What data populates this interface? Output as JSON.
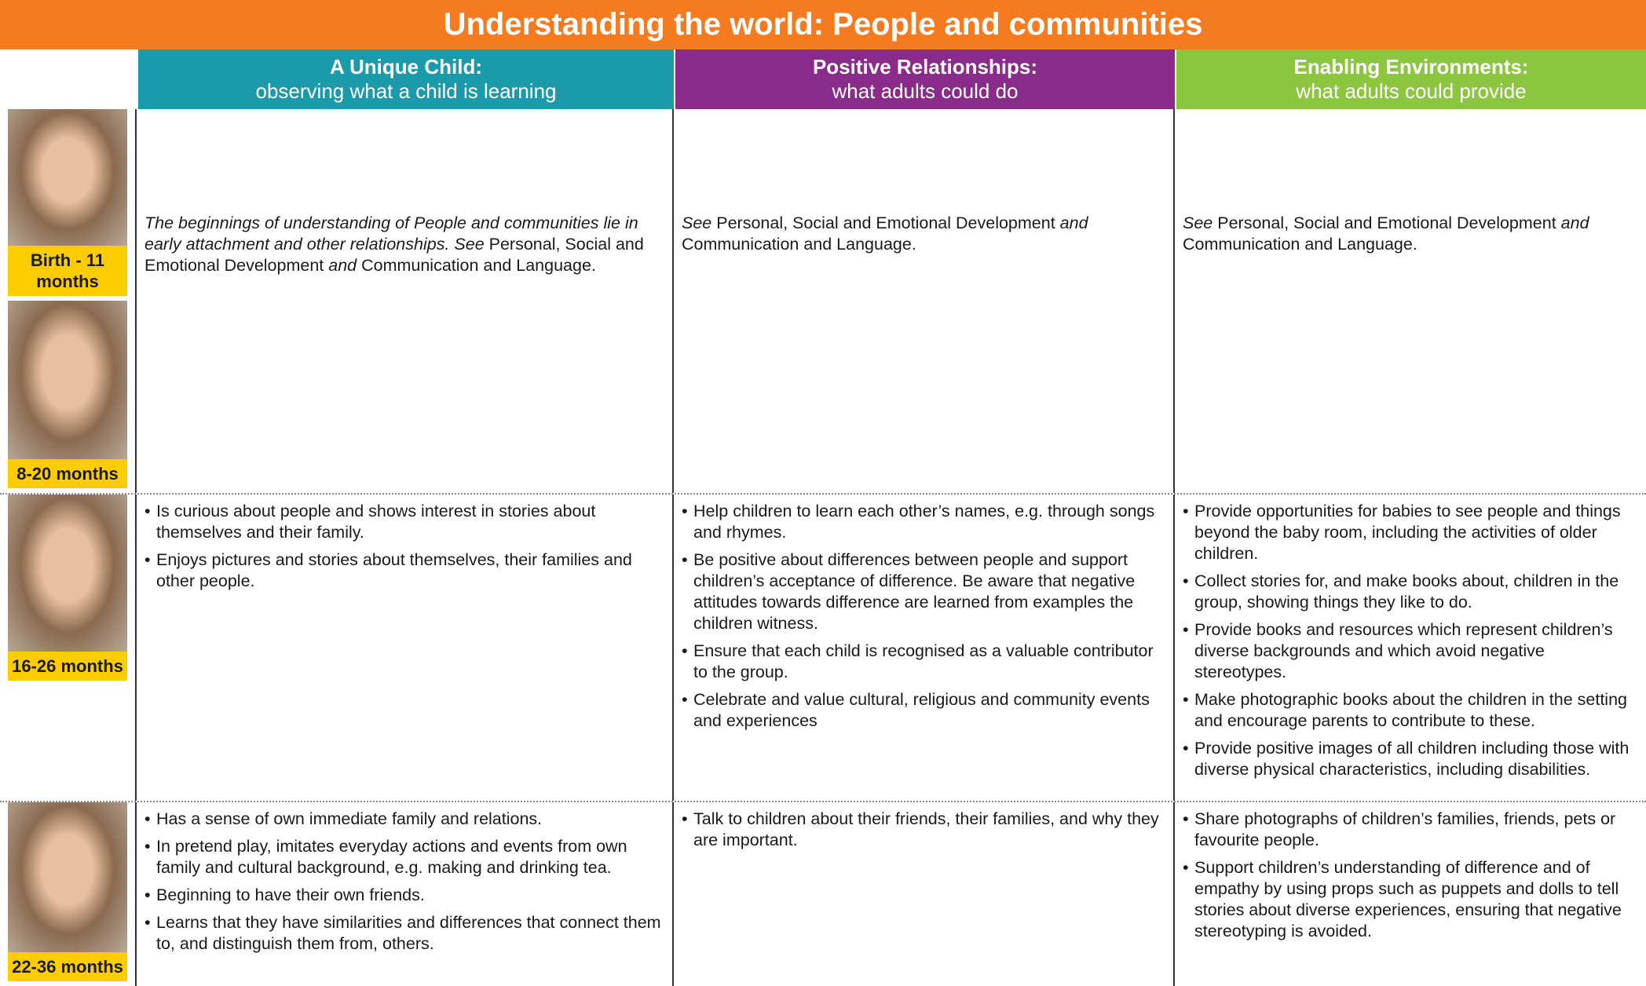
{
  "title": "Understanding the world: People and communities",
  "columns": [
    {
      "title": "A Unique Child:",
      "subtitle": "observing what a child is learning",
      "color": "#1a9aaa"
    },
    {
      "title": "Positive Relationships:",
      "subtitle": "what adults could do",
      "color": "#8a2a8a"
    },
    {
      "title": "Enabling Environments:",
      "subtitle": "what adults could provide",
      "color": "#8cc63f"
    }
  ],
  "rows": [
    {
      "ages": [
        "Birth - 11 months",
        "8-20 months"
      ],
      "cells": [
        {
          "runs": [
            {
              "text": "The beginnings of understanding of People and communities lie in early attachment and other relationships. See",
              "italic": true
            },
            {
              "text": " Personal, Social and Emotional Development ",
              "italic": false
            },
            {
              "text": "and",
              "italic": true
            },
            {
              "text": " Communication and Language.",
              "italic": false
            }
          ]
        },
        {
          "runs": [
            {
              "text": "See",
              "italic": true
            },
            {
              "text": " Personal, Social and Emotional Development ",
              "italic": false
            },
            {
              "text": "and",
              "italic": true
            },
            {
              "text": " Communication and Language.",
              "italic": false
            }
          ]
        },
        {
          "runs": [
            {
              "text": "See",
              "italic": true
            },
            {
              "text": " Personal, Social and Emotional Development ",
              "italic": false
            },
            {
              "text": "and",
              "italic": true
            },
            {
              "text": " Communication and Language.",
              "italic": false
            }
          ]
        }
      ]
    },
    {
      "ages": [
        "16-26 months"
      ],
      "cells": [
        {
          "bullets": [
            "Is curious about people and shows interest in stories about themselves and their family.",
            "Enjoys pictures and stories about themselves, their families and other people."
          ]
        },
        {
          "bullets": [
            "Help children to learn each other’s names, e.g. through songs and rhymes.",
            "Be positive about differences between people and support children’s acceptance of difference. Be aware that negative attitudes towards difference are learned from examples the children witness.",
            "Ensure that each child is recognised as a valuable contributor to the group.",
            "Celebrate and value cultural, religious and community events and experiences"
          ]
        },
        {
          "bullets": [
            "Provide opportunities for babies to see people and things beyond the baby room, including the activities of older children.",
            "Collect stories for, and make books about, children in the group, showing things they like to do.",
            "Provide books and resources which represent children’s diverse backgrounds and which avoid negative stereotypes.",
            "Make photographic books about the children in the setting and encourage parents to contribute to these.",
            "Provide positive images of all children including those with diverse physical characteristics, including disabilities."
          ]
        }
      ]
    },
    {
      "ages": [
        "22-36 months"
      ],
      "cells": [
        {
          "bullets": [
            "Has a sense of own immediate family and relations.",
            "In pretend play, imitates everyday actions and events from own family and cultural background, e.g. making and drinking tea.",
            "Beginning to have their own friends.",
            "Learns that they have similarities and differences that connect them to, and distinguish them from, others."
          ]
        },
        {
          "bullets": [
            "Talk to children about their friends, their families, and why they are important."
          ]
        },
        {
          "bullets": [
            "Share photographs of children’s families, friends, pets or favourite people.",
            "Support children’s understanding of difference and of empathy by using props such as puppets and dolls to tell stories about diverse experiences, ensuring that negative stereotyping is avoided."
          ]
        }
      ]
    }
  ]
}
